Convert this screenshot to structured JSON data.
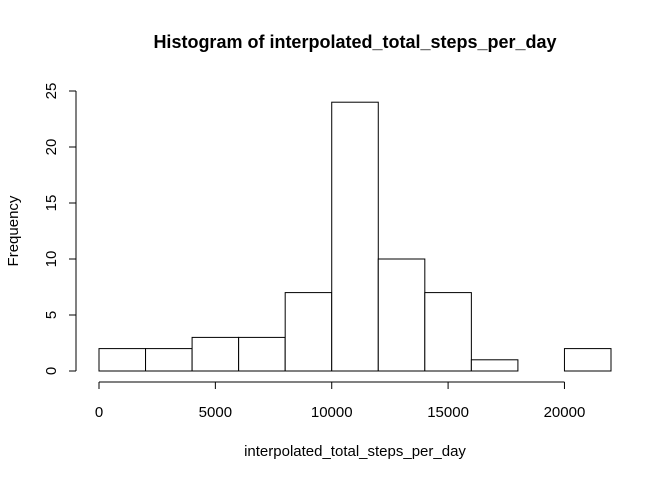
{
  "chart_data": {
    "type": "bar",
    "title": "Histogram of interpolated_total_steps_per_day",
    "xlabel": "interpolated_total_steps_per_day",
    "ylabel": "Frequency",
    "xlim": [
      0,
      22000
    ],
    "ylim": [
      0,
      25
    ],
    "xticks": [
      0,
      5000,
      10000,
      15000,
      20000
    ],
    "yticks": [
      0,
      5,
      10,
      15,
      20,
      25
    ],
    "bins": [
      {
        "start": 0,
        "end": 2000,
        "count": 2
      },
      {
        "start": 2000,
        "end": 4000,
        "count": 2
      },
      {
        "start": 4000,
        "end": 6000,
        "count": 3
      },
      {
        "start": 6000,
        "end": 8000,
        "count": 3
      },
      {
        "start": 8000,
        "end": 10000,
        "count": 7
      },
      {
        "start": 10000,
        "end": 12000,
        "count": 24
      },
      {
        "start": 12000,
        "end": 14000,
        "count": 10
      },
      {
        "start": 14000,
        "end": 16000,
        "count": 7
      },
      {
        "start": 16000,
        "end": 18000,
        "count": 1
      },
      {
        "start": 18000,
        "end": 20000,
        "count": 0
      },
      {
        "start": 20000,
        "end": 22000,
        "count": 2
      }
    ],
    "grid": false,
    "legend": "none"
  }
}
